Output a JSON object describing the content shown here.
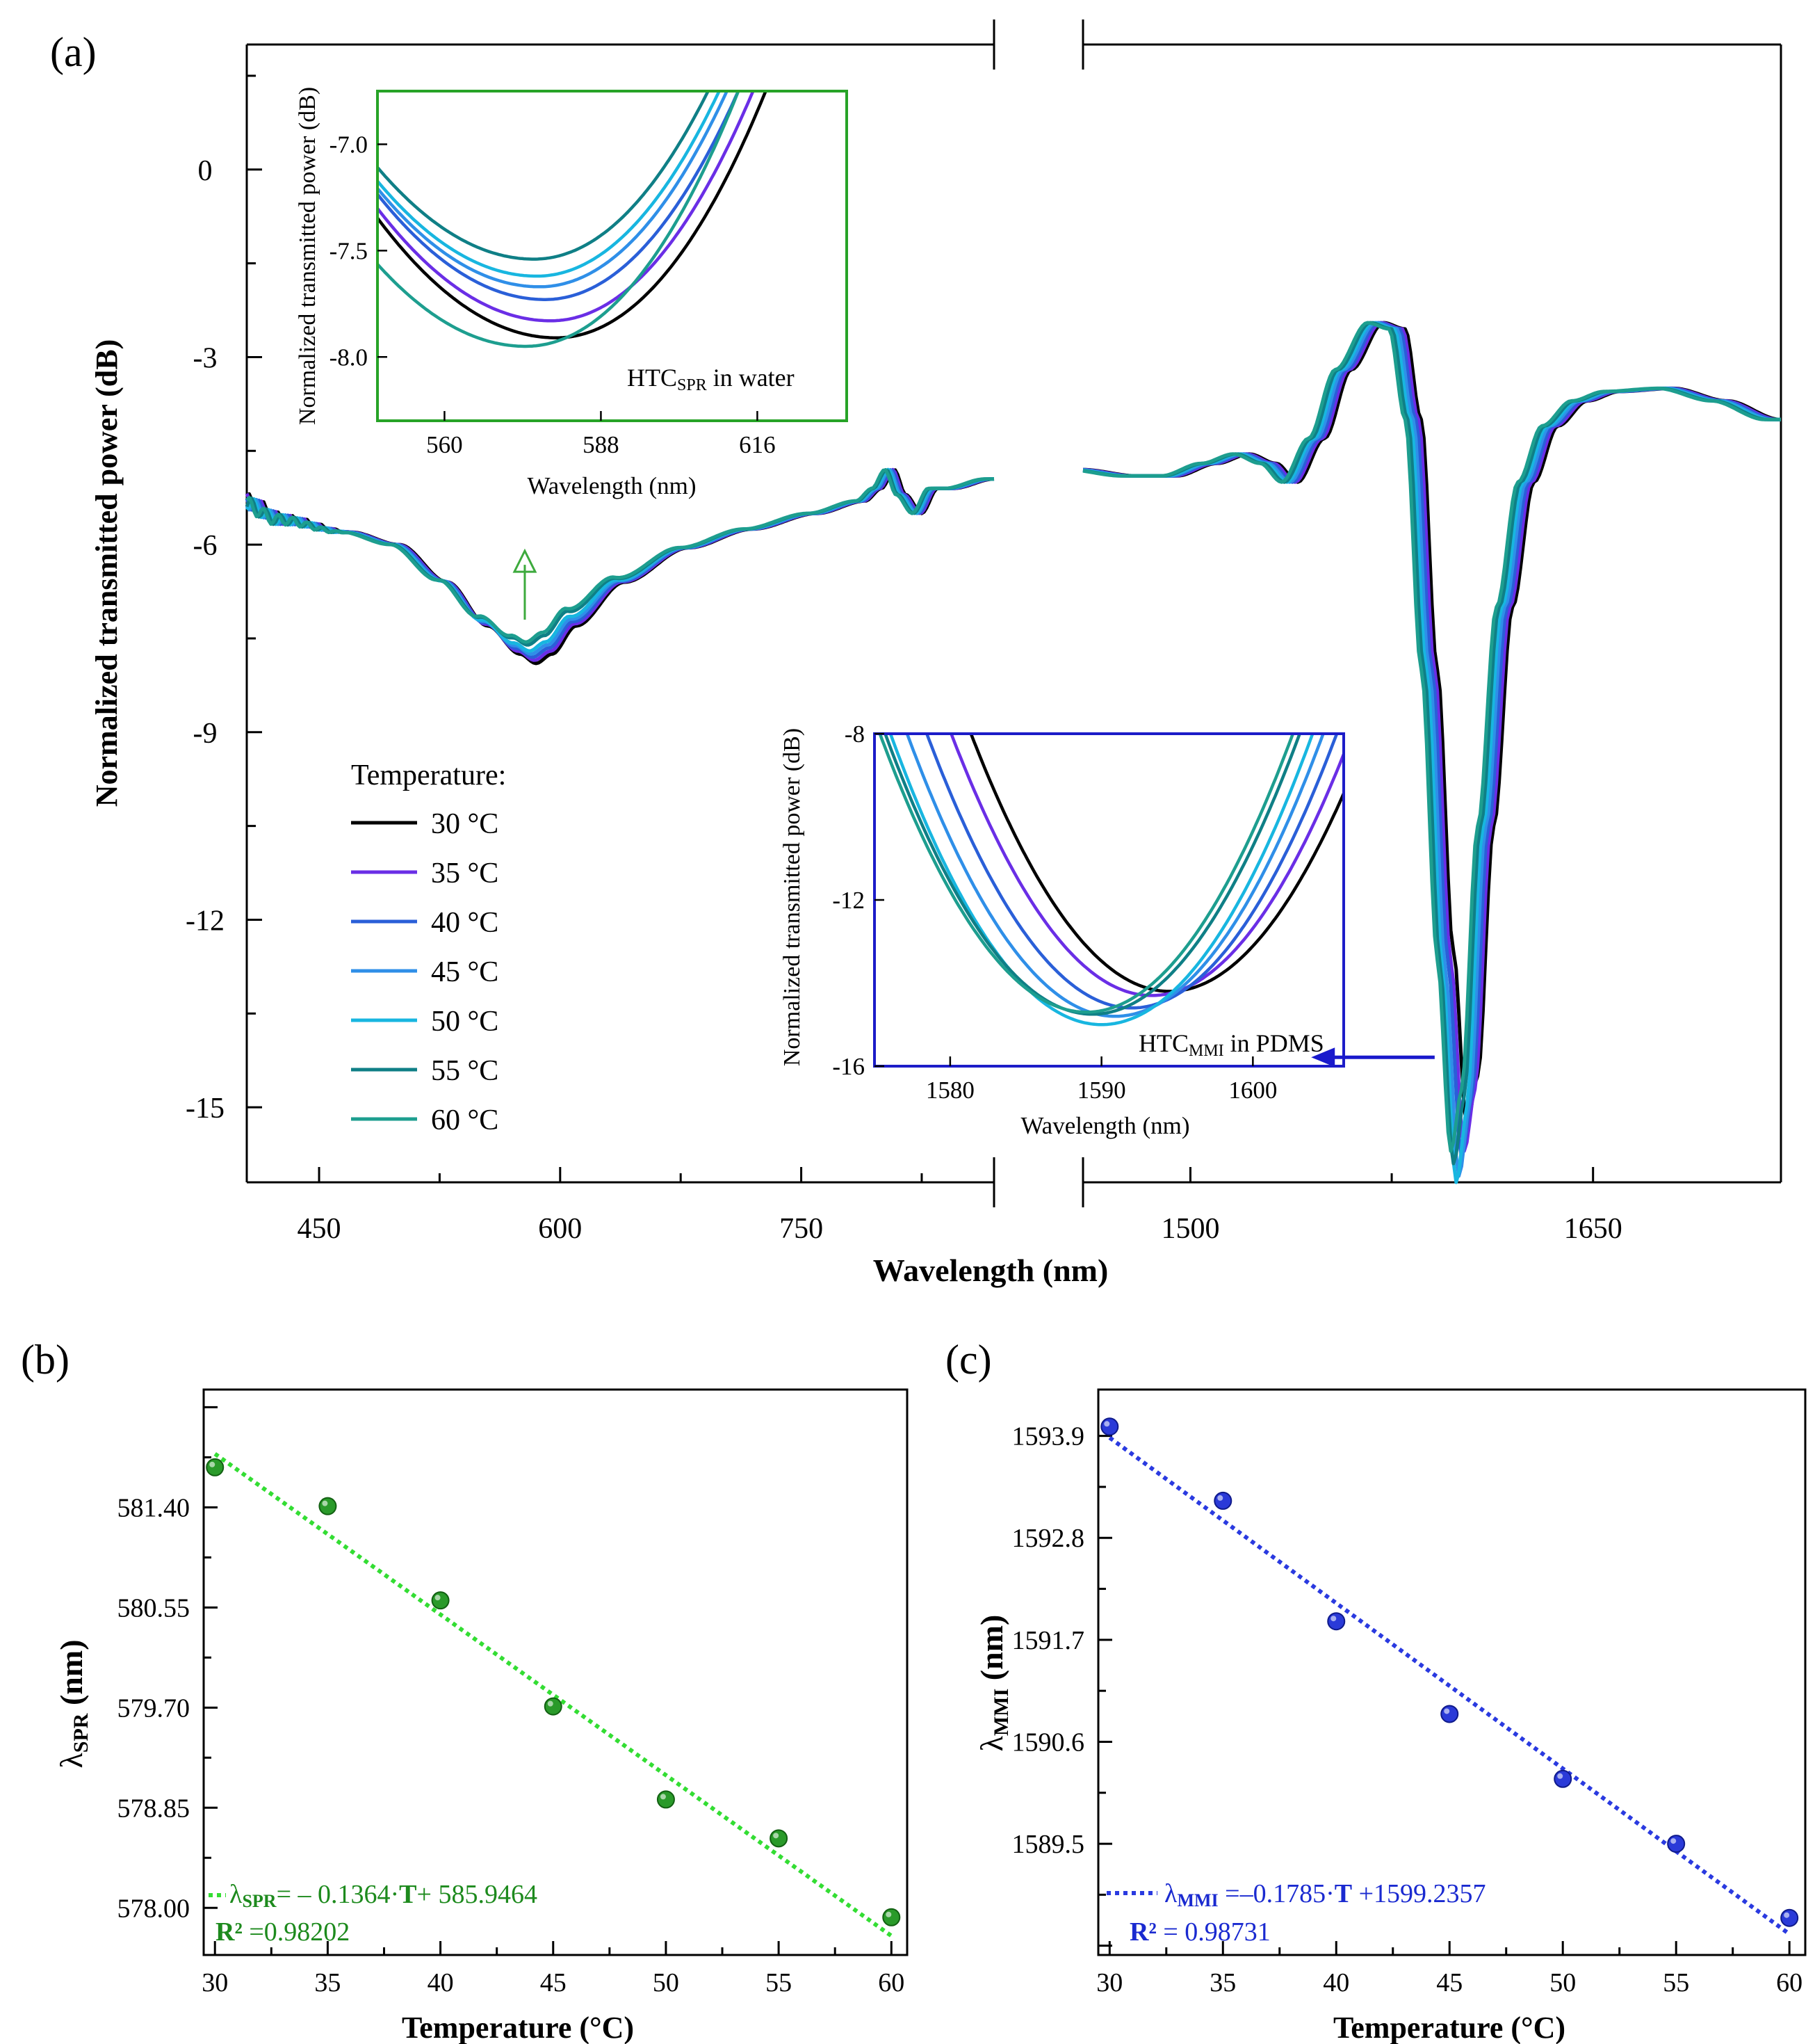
{
  "colors": {
    "t30": "#000000",
    "t35": "#6a2ee6",
    "t40": "#2a5fd8",
    "t45": "#2f8fe8",
    "t50": "#18b6e0",
    "t55": "#0f7f86",
    "t60": "#1d9e8f",
    "inset_spr_frame": "#27a327",
    "inset_mmi_frame": "#1c1cc8",
    "green_fit": "#33dd33",
    "green_text": "#1d8a1d",
    "blue_fit": "#2a3ae0",
    "blue_text": "#1a2ad0",
    "up_arrow": "#3daa3d",
    "left_arrow": "#1a1acc"
  },
  "chart_data": [
    {
      "id": "a",
      "type": "line",
      "panel_label": "(a)",
      "xlabel": "Wavelength (nm)",
      "ylabel": "Normalized transmitted power (dB)",
      "broken_x": true,
      "x_segments": [
        {
          "range": [
            405,
            870
          ],
          "ticks": [
            450,
            600,
            750
          ],
          "tick_labels": [
            "450",
            "600",
            "750"
          ]
        },
        {
          "range": [
            1460,
            1720
          ],
          "ticks": [
            1500,
            1650
          ],
          "tick_labels": [
            "1500",
            "1650"
          ]
        }
      ],
      "ylim": [
        -16.2,
        2
      ],
      "yticks": [
        0,
        -3,
        -6,
        -9,
        -12,
        -15
      ],
      "ytick_labels": [
        "0",
        "-3",
        "-6",
        "-9",
        "-12",
        "-15"
      ],
      "legend_title": "Temperature:",
      "series": [
        {
          "name": "30 °C",
          "shift_vis": 0,
          "shift_nir": 0,
          "depth_vis": 0,
          "depth_nir": 0
        },
        {
          "name": "35 °C",
          "shift_vis": -1,
          "shift_nir": -1,
          "depth_vis": 0.05,
          "depth_nir": -0.4
        },
        {
          "name": "40 °C",
          "shift_vis": -2,
          "shift_nir": -2,
          "depth_vis": 0.1,
          "depth_nir": -0.5
        },
        {
          "name": "45 °C",
          "shift_vis": -3,
          "shift_nir": -3,
          "depth_vis": 0.15,
          "depth_nir": -0.8
        },
        {
          "name": "50 °C",
          "shift_vis": -4,
          "shift_nir": -4,
          "depth_vis": 0.2,
          "depth_nir": -0.9
        },
        {
          "name": "55 °C",
          "shift_vis": -5,
          "shift_nir": -5,
          "depth_vis": 0.3,
          "depth_nir": -0.6
        },
        {
          "name": "60 °C",
          "shift_vis": -6,
          "shift_nir": -6,
          "depth_vis": 0.35,
          "depth_nir": -0.4
        }
      ],
      "base_vis": [
        [
          405,
          -5.3
        ],
        [
          430,
          -5.6
        ],
        [
          470,
          -5.8
        ],
        [
          500,
          -6.0
        ],
        [
          530,
          -6.6
        ],
        [
          555,
          -7.3
        ],
        [
          575,
          -7.75
        ],
        [
          585,
          -7.9
        ],
        [
          595,
          -7.75
        ],
        [
          610,
          -7.3
        ],
        [
          640,
          -6.6
        ],
        [
          680,
          -6.05
        ],
        [
          720,
          -5.75
        ],
        [
          760,
          -5.5
        ],
        [
          790,
          -5.3
        ],
        [
          800,
          -5.1
        ],
        [
          808,
          -4.8
        ],
        [
          815,
          -5.2
        ],
        [
          825,
          -5.5
        ],
        [
          835,
          -5.1
        ],
        [
          845,
          -5.1
        ],
        [
          870,
          -4.95
        ]
      ],
      "base_nir": [
        [
          1460,
          -4.8
        ],
        [
          1480,
          -4.9
        ],
        [
          1495,
          -4.9
        ],
        [
          1510,
          -4.7
        ],
        [
          1522,
          -4.55
        ],
        [
          1532,
          -4.7
        ],
        [
          1540,
          -5.0
        ],
        [
          1550,
          -4.3
        ],
        [
          1560,
          -3.2
        ],
        [
          1572,
          -2.45
        ],
        [
          1580,
          -2.55
        ],
        [
          1586,
          -4.0
        ],
        [
          1592,
          -8.0
        ],
        [
          1598,
          -12.5
        ],
        [
          1603,
          -15.3
        ],
        [
          1607,
          -14.5
        ],
        [
          1613,
          -10.5
        ],
        [
          1620,
          -7.0
        ],
        [
          1628,
          -5.0
        ],
        [
          1637,
          -4.1
        ],
        [
          1648,
          -3.7
        ],
        [
          1660,
          -3.55
        ],
        [
          1680,
          -3.5
        ],
        [
          1700,
          -3.7
        ],
        [
          1720,
          -4.0
        ]
      ],
      "arrow_up": {
        "x": 578,
        "y_from": -7.2,
        "y_to": -6.1
      },
      "arrow_left": {
        "x_from": 1591,
        "x_to": 1545,
        "y": -14.2
      }
    },
    {
      "id": "a_inset_spr",
      "type": "line",
      "xlabel": "Wavelength (nm)",
      "ylabel": "Normalized transmitted power (dB)",
      "annotation": {
        "main": "HTC",
        "sub": "SPR",
        "rest": " in water"
      },
      "xlim": [
        548,
        632
      ],
      "xticks": [
        560,
        588,
        616
      ],
      "xtick_labels": [
        "560",
        "588",
        "616"
      ],
      "ylim": [
        -8.3,
        -6.75
      ],
      "yticks": [
        -7.0,
        -7.5,
        -8.0
      ],
      "ytick_labels": [
        "-7.0",
        "-7.5",
        "-8.0"
      ],
      "minima": [
        {
          "name": "30 °C",
          "x": 580,
          "y": -7.91
        },
        {
          "name": "35 °C",
          "x": 579,
          "y": -7.83
        },
        {
          "name": "40 °C",
          "x": 578,
          "y": -7.73
        },
        {
          "name": "45 °C",
          "x": 577,
          "y": -7.67
        },
        {
          "name": "50 °C",
          "x": 576.5,
          "y": -7.62
        },
        {
          "name": "55 °C",
          "x": 576,
          "y": -7.54
        },
        {
          "name": "60 °C",
          "x": 574.5,
          "y": -7.95
        }
      ]
    },
    {
      "id": "a_inset_mmi",
      "type": "line",
      "xlabel": "Wavelength (nm)",
      "ylabel": "Normalized transmitted power (dB)",
      "annotation": {
        "main": "HTC",
        "sub": "MMI",
        "rest": " in PDMS"
      },
      "xlim": [
        1575,
        1606
      ],
      "xticks": [
        1580,
        1590,
        1600
      ],
      "xtick_labels": [
        "1580",
        "1590",
        "1600"
      ],
      "ylim": [
        -16,
        -8
      ],
      "yticks": [
        -8,
        -12,
        -16
      ],
      "ytick_labels": [
        "-8",
        "-12",
        "-16"
      ],
      "minima": [
        {
          "name": "30 °C",
          "x": 1594.5,
          "y": -14.2
        },
        {
          "name": "35 °C",
          "x": 1593.3,
          "y": -14.3
        },
        {
          "name": "40 °C",
          "x": 1592.0,
          "y": -14.6
        },
        {
          "name": "45 °C",
          "x": 1590.9,
          "y": -14.8
        },
        {
          "name": "50 °C",
          "x": 1590.0,
          "y": -15.0
        },
        {
          "name": "55 °C",
          "x": 1589.4,
          "y": -14.75
        },
        {
          "name": "60 °C",
          "x": 1589.0,
          "y": -14.7
        }
      ]
    },
    {
      "id": "b",
      "type": "scatter",
      "panel_label": "(b)",
      "xlabel": "Temperature (°C)",
      "ylabel_main": "λ",
      "ylabel_sub": "SPR",
      "ylabel_rest": " (nm)",
      "xlim": [
        29.5,
        60.7
      ],
      "xticks": [
        30,
        35,
        40,
        45,
        50,
        55,
        60
      ],
      "xtick_labels": [
        "30",
        "35",
        "40",
        "45",
        "50",
        "55",
        "60"
      ],
      "ylim": [
        577.6,
        582.4
      ],
      "yticks": [
        578.0,
        578.85,
        579.7,
        580.55,
        581.4
      ],
      "ytick_labels": [
        "578.00",
        "578.85",
        "579.70",
        "580.55",
        "581.40"
      ],
      "x": [
        30,
        35,
        40,
        45,
        50,
        55,
        60
      ],
      "y": [
        581.74,
        581.41,
        580.61,
        579.71,
        578.92,
        578.59,
        577.92
      ],
      "fit": {
        "slope": -0.1364,
        "intercept": 585.9464
      },
      "equation": {
        "lead": "λ",
        "sub": "SPR",
        "text": "= – 0.1364·",
        "bold_T": "T",
        "tail": "+ 585.9464"
      },
      "r2": {
        "bold": "R²",
        "text": " =0.98202"
      }
    },
    {
      "id": "c",
      "type": "scatter",
      "panel_label": "(c)",
      "xlabel": "Temperature (°C)",
      "ylabel_main": "λ",
      "ylabel_sub": "MMI",
      "ylabel_rest": " (nm)",
      "xlim": [
        29.5,
        60.7
      ],
      "xticks": [
        30,
        35,
        40,
        45,
        50,
        55,
        60
      ],
      "xtick_labels": [
        "30",
        "35",
        "40",
        "45",
        "50",
        "55",
        "60"
      ],
      "ylim": [
        1588.3,
        1594.4
      ],
      "yticks": [
        1589.5,
        1590.6,
        1591.7,
        1592.8,
        1593.9
      ],
      "ytick_labels": [
        "1589.5",
        "1590.6",
        "1591.7",
        "1592.8",
        "1593.9"
      ],
      "x": [
        30,
        35,
        40,
        45,
        50,
        55,
        60
      ],
      "y": [
        1594.0,
        1593.2,
        1591.9,
        1590.9,
        1590.2,
        1589.5,
        1588.7
      ],
      "fit": {
        "slope": -0.1785,
        "intercept": 1599.2357
      },
      "equation": {
        "lead": "λ",
        "sub": "MMI",
        "text": " =–0.1785·",
        "bold_T": "T",
        "tail": " +1599.2357"
      },
      "r2": {
        "bold": "R²",
        "text": " = 0.98731"
      }
    }
  ]
}
